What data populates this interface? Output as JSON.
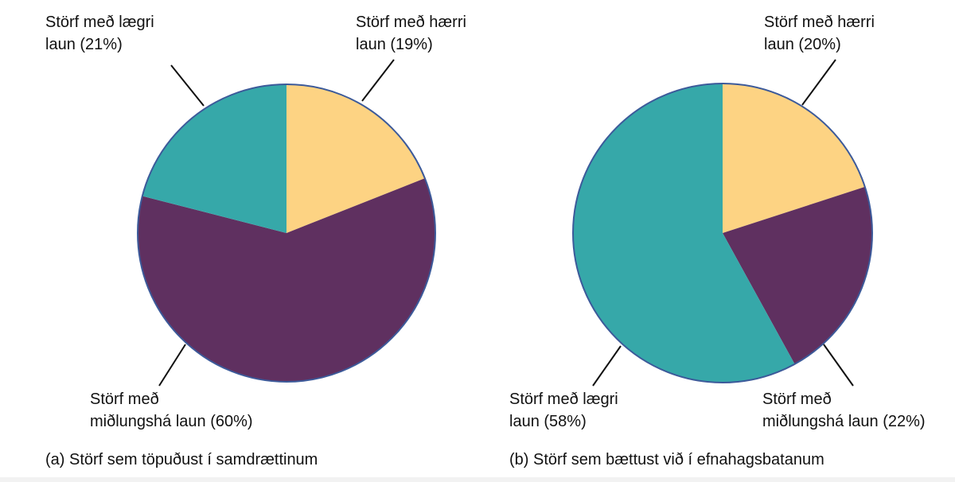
{
  "chart_data": [
    {
      "type": "pie",
      "title": "(a) Störf sem töpuðust í samdrættinum",
      "categories": [
        "Störf með hærri\nlaun",
        "Störf með\nmiðlungshá laun",
        "Störf með lægri\nlaun"
      ],
      "values": [
        19,
        60,
        21
      ],
      "value_labels": [
        "(19%)",
        "(60%)",
        "(21%)"
      ],
      "colors": [
        "#fdd383",
        "#5f3060",
        "#36a8a9"
      ]
    },
    {
      "type": "pie",
      "title": "(b) Störf sem bættust við í efnahagsbatanum",
      "categories": [
        "Störf með hærri\nlaun",
        "Störf með\nmiðlungshá laun",
        "Störf með lægri\nlaun"
      ],
      "values": [
        20,
        22,
        58
      ],
      "value_labels": [
        "(20%)",
        "(22%)",
        "(58%)"
      ],
      "colors": [
        "#fdd383",
        "#5f3060",
        "#36a8a9"
      ]
    }
  ]
}
